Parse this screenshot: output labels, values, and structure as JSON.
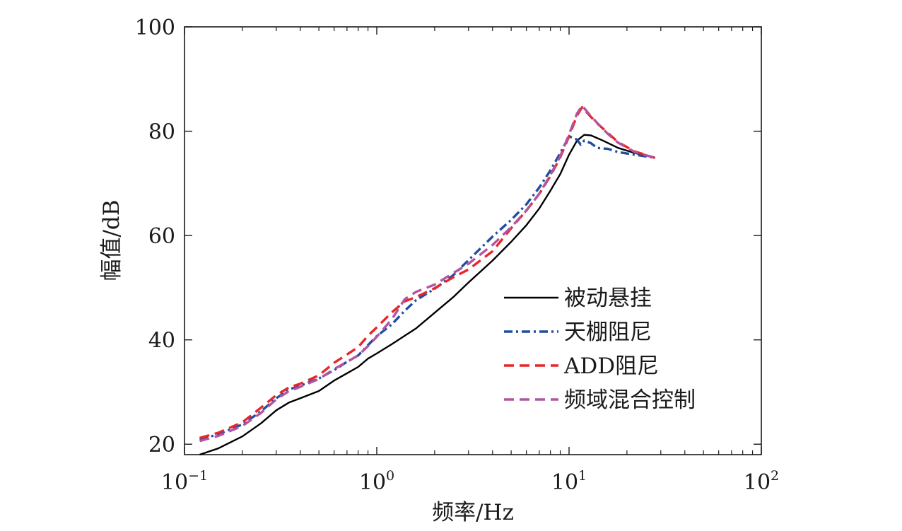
{
  "chart_data": {
    "type": "line",
    "title": "",
    "xlabel": "频率/Hz",
    "ylabel": "幅值/dB",
    "xscale": "log",
    "xlim": [
      0.1,
      100
    ],
    "ylim": [
      18,
      100
    ],
    "grid": false,
    "legend_position": "bottom-right",
    "x_ticks": [
      {
        "value": 0.1,
        "base": "10",
        "exp": "−1"
      },
      {
        "value": 1,
        "base": "10",
        "exp": "0"
      },
      {
        "value": 10,
        "base": "10",
        "exp": "1"
      },
      {
        "value": 100,
        "base": "10",
        "exp": "2"
      }
    ],
    "y_ticks": [
      {
        "value": 20,
        "label": "20"
      },
      {
        "value": 40,
        "label": "40"
      },
      {
        "value": 60,
        "label": "60"
      },
      {
        "value": 80,
        "label": "80"
      },
      {
        "value": 100,
        "label": "100"
      }
    ],
    "series": [
      {
        "name": "被动悬挂",
        "color": "#000000",
        "dash": "solid",
        "points": [
          [
            0.12,
            18.0
          ],
          [
            0.15,
            19.2
          ],
          [
            0.2,
            21.5
          ],
          [
            0.25,
            24.0
          ],
          [
            0.3,
            26.5
          ],
          [
            0.35,
            28.0
          ],
          [
            0.4,
            28.8
          ],
          [
            0.5,
            30.2
          ],
          [
            0.6,
            32.2
          ],
          [
            0.7,
            33.6
          ],
          [
            0.8,
            34.8
          ],
          [
            0.9,
            36.4
          ],
          [
            1.0,
            37.4
          ],
          [
            1.2,
            39.2
          ],
          [
            1.4,
            40.8
          ],
          [
            1.6,
            42.2
          ],
          [
            2.0,
            45.2
          ],
          [
            2.5,
            48.2
          ],
          [
            3.0,
            51.0
          ],
          [
            4.0,
            55.2
          ],
          [
            5.0,
            58.8
          ],
          [
            6.0,
            62.0
          ],
          [
            7.0,
            65.2
          ],
          [
            8.0,
            68.6
          ],
          [
            9.0,
            71.8
          ],
          [
            10.0,
            75.5
          ],
          [
            11.0,
            78.2
          ],
          [
            12.0,
            79.3
          ],
          [
            13.0,
            79.2
          ],
          [
            15.0,
            78.2
          ],
          [
            18.0,
            76.8
          ],
          [
            22.0,
            75.8
          ],
          [
            28.0,
            74.9
          ]
        ]
      },
      {
        "name": "天棚阻尼",
        "color": "#1f4ea1",
        "dash": "dashdot",
        "points": [
          [
            0.12,
            20.9
          ],
          [
            0.15,
            21.9
          ],
          [
            0.2,
            23.8
          ],
          [
            0.25,
            26.3
          ],
          [
            0.3,
            28.8
          ],
          [
            0.35,
            30.5
          ],
          [
            0.4,
            31.2
          ],
          [
            0.5,
            32.6
          ],
          [
            0.6,
            34.2
          ],
          [
            0.7,
            35.8
          ],
          [
            0.8,
            37.0
          ],
          [
            0.9,
            39.0
          ],
          [
            1.0,
            40.7
          ],
          [
            1.2,
            43.0
          ],
          [
            1.4,
            45.6
          ],
          [
            1.6,
            47.6
          ],
          [
            2.0,
            49.8
          ],
          [
            2.5,
            52.4
          ],
          [
            3.0,
            55.3
          ],
          [
            4.0,
            59.8
          ],
          [
            5.0,
            63.0
          ],
          [
            6.0,
            66.0
          ],
          [
            7.0,
            69.2
          ],
          [
            8.0,
            72.5
          ],
          [
            9.0,
            75.8
          ],
          [
            10.0,
            79.0
          ],
          [
            11.0,
            78.4
          ],
          [
            11.5,
            77.4
          ],
          [
            12.0,
            78.2
          ],
          [
            13.0,
            77.7
          ],
          [
            14.0,
            76.8
          ],
          [
            16.0,
            76.6
          ],
          [
            18.0,
            76.0
          ],
          [
            22.0,
            75.5
          ],
          [
            28.0,
            74.9
          ]
        ]
      },
      {
        "name": "ADD阻尼",
        "color": "#e8262a",
        "dash": "dashed",
        "points": [
          [
            0.12,
            21.2
          ],
          [
            0.15,
            22.2
          ],
          [
            0.2,
            24.2
          ],
          [
            0.25,
            27.0
          ],
          [
            0.3,
            29.4
          ],
          [
            0.35,
            30.9
          ],
          [
            0.4,
            31.6
          ],
          [
            0.5,
            33.2
          ],
          [
            0.6,
            35.6
          ],
          [
            0.7,
            37.2
          ],
          [
            0.8,
            38.6
          ],
          [
            0.9,
            40.8
          ],
          [
            1.0,
            42.4
          ],
          [
            1.2,
            45.3
          ],
          [
            1.4,
            47.4
          ],
          [
            1.6,
            48.2
          ],
          [
            2.0,
            49.9
          ],
          [
            2.5,
            52.0
          ],
          [
            3.0,
            53.5
          ],
          [
            4.0,
            57.0
          ],
          [
            5.0,
            61.4
          ],
          [
            6.0,
            64.8
          ],
          [
            7.0,
            68.0
          ],
          [
            8.0,
            71.4
          ],
          [
            9.0,
            75.0
          ],
          [
            10.0,
            79.0
          ],
          [
            11.0,
            83.0
          ],
          [
            11.7,
            84.6
          ],
          [
            12.5,
            83.4
          ],
          [
            14.0,
            81.5
          ],
          [
            16.0,
            79.6
          ],
          [
            18.0,
            77.9
          ],
          [
            22.0,
            76.1
          ],
          [
            28.0,
            74.9
          ]
        ]
      },
      {
        "name": "频域混合控制",
        "color": "#b3559e",
        "dash": "dashed",
        "points": [
          [
            0.12,
            20.6
          ],
          [
            0.15,
            21.6
          ],
          [
            0.2,
            23.5
          ],
          [
            0.25,
            26.0
          ],
          [
            0.3,
            28.6
          ],
          [
            0.35,
            30.2
          ],
          [
            0.4,
            31.0
          ],
          [
            0.5,
            32.5
          ],
          [
            0.6,
            34.4
          ],
          [
            0.7,
            35.8
          ],
          [
            0.8,
            37.0
          ],
          [
            0.9,
            38.8
          ],
          [
            1.0,
            40.6
          ],
          [
            1.2,
            44.0
          ],
          [
            1.4,
            47.8
          ],
          [
            1.6,
            49.2
          ],
          [
            2.0,
            50.6
          ],
          [
            2.5,
            52.8
          ],
          [
            3.0,
            54.6
          ],
          [
            4.0,
            58.2
          ],
          [
            5.0,
            61.6
          ],
          [
            6.0,
            64.8
          ],
          [
            7.0,
            68.0
          ],
          [
            8.0,
            71.6
          ],
          [
            9.0,
            75.2
          ],
          [
            10.0,
            79.4
          ],
          [
            11.0,
            83.4
          ],
          [
            11.7,
            84.9
          ],
          [
            12.5,
            83.6
          ],
          [
            14.0,
            81.6
          ],
          [
            16.0,
            79.4
          ],
          [
            18.0,
            77.8
          ],
          [
            22.0,
            76.0
          ],
          [
            28.0,
            74.9
          ]
        ]
      }
    ]
  }
}
